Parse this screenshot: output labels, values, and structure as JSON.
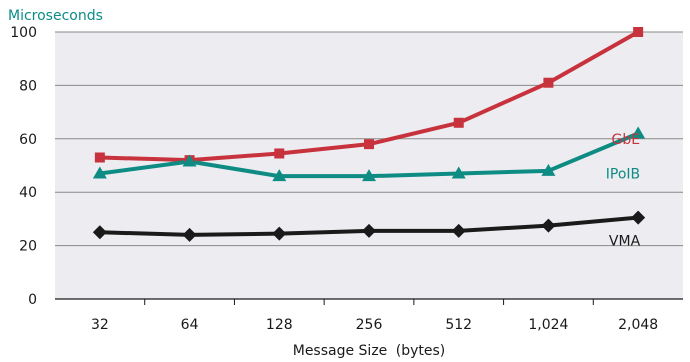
{
  "chart_data": {
    "type": "line",
    "title": "",
    "ylabel": "Microseconds",
    "xlabel_main": "Message Size",
    "xlabel_unit": "(bytes)",
    "categories": [
      "32",
      "64",
      "128",
      "256",
      "512",
      "1,024",
      "2,048"
    ],
    "ylim": [
      0,
      100
    ],
    "yticks": [
      0,
      20,
      40,
      60,
      80,
      100
    ],
    "grid": true,
    "series": [
      {
        "name": "GbE",
        "color": "#c8323c",
        "marker": "square",
        "values": [
          53,
          52,
          54.5,
          58,
          66,
          81,
          100
        ]
      },
      {
        "name": "IPoIB",
        "color": "#0e8c84",
        "marker": "triangle",
        "values": [
          47,
          51.5,
          46,
          46,
          47,
          48,
          62
        ]
      },
      {
        "name": "VMA",
        "color": "#1a1a1a",
        "marker": "diamond",
        "values": [
          25,
          24,
          24.5,
          25.5,
          25.5,
          27.5,
          30.5
        ]
      }
    ]
  }
}
